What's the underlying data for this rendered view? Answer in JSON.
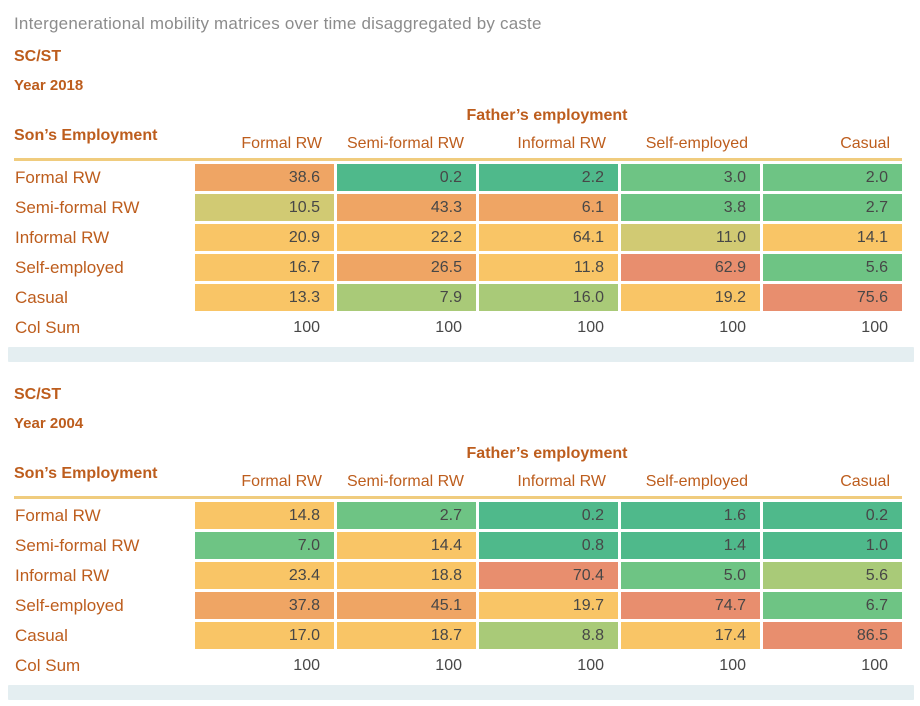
{
  "page_title": "Intergenerational mobility matrices over time disaggregated by caste",
  "colors": {
    "orange": "#efa564",
    "teal": "#4fb98b",
    "green": "#6ec484",
    "lightgreen": "#a9ca78",
    "olive": "#d1ca73",
    "yellow": "#f9c566",
    "salmon": "#e88e6e",
    "accent_text": "#bd5d1d",
    "title_text": "#8c8c8c",
    "value_text": "#474747",
    "band": "#e4eef1",
    "header_rule": "#f0cc7e"
  },
  "chart_data": [
    {
      "type": "heatmap",
      "group": "SC/ST",
      "year": "Year 2018",
      "x_axis_label": "Father’s employment",
      "y_axis_label": "Son’s Employment",
      "columns": [
        "Formal RW",
        "Semi-formal RW",
        "Informal RW",
        "Self-employed",
        "Casual"
      ],
      "rows": [
        "Formal RW",
        "Semi-formal RW",
        "Informal RW",
        "Self-employed",
        "Casual"
      ],
      "values": [
        [
          38.6,
          0.2,
          2.2,
          3.0,
          2.0
        ],
        [
          10.5,
          43.3,
          6.1,
          3.8,
          2.7
        ],
        [
          20.9,
          22.2,
          64.1,
          11.0,
          14.1
        ],
        [
          16.7,
          26.5,
          11.8,
          62.9,
          5.6
        ],
        [
          13.3,
          7.9,
          16.0,
          19.2,
          75.6
        ]
      ],
      "cell_colors": [
        [
          "orange",
          "teal",
          "teal",
          "green",
          "green"
        ],
        [
          "olive",
          "orange",
          "orange",
          "green",
          "green"
        ],
        [
          "yellow",
          "yellow",
          "yellow",
          "olive",
          "yellow"
        ],
        [
          "yellow",
          "orange",
          "yellow",
          "salmon",
          "green"
        ],
        [
          "yellow",
          "lightgreen",
          "lightgreen",
          "yellow",
          "salmon"
        ]
      ],
      "col_sum_label": "Col Sum",
      "col_sums": [
        100,
        100,
        100,
        100,
        100
      ]
    },
    {
      "type": "heatmap",
      "group": "SC/ST",
      "year": "Year 2004",
      "x_axis_label": "Father’s employment",
      "y_axis_label": "Son’s Employment",
      "columns": [
        "Formal RW",
        "Semi-formal RW",
        "Informal RW",
        "Self-employed",
        "Casual"
      ],
      "rows": [
        "Formal RW",
        "Semi-formal RW",
        "Informal RW",
        "Self-employed",
        "Casual"
      ],
      "values": [
        [
          14.8,
          2.7,
          0.2,
          1.6,
          0.2
        ],
        [
          7.0,
          14.4,
          0.8,
          1.4,
          1.0
        ],
        [
          23.4,
          18.8,
          70.4,
          5.0,
          5.6
        ],
        [
          37.8,
          45.1,
          19.7,
          74.7,
          6.7
        ],
        [
          17.0,
          18.7,
          8.8,
          17.4,
          86.5
        ]
      ],
      "cell_colors": [
        [
          "yellow",
          "green",
          "teal",
          "teal",
          "teal"
        ],
        [
          "green",
          "yellow",
          "teal",
          "teal",
          "teal"
        ],
        [
          "yellow",
          "yellow",
          "salmon",
          "green",
          "lightgreen"
        ],
        [
          "orange",
          "orange",
          "yellow",
          "salmon",
          "green"
        ],
        [
          "yellow",
          "yellow",
          "lightgreen",
          "yellow",
          "salmon"
        ]
      ],
      "col_sum_label": "Col Sum",
      "col_sums": [
        100,
        100,
        100,
        100,
        100
      ]
    }
  ]
}
